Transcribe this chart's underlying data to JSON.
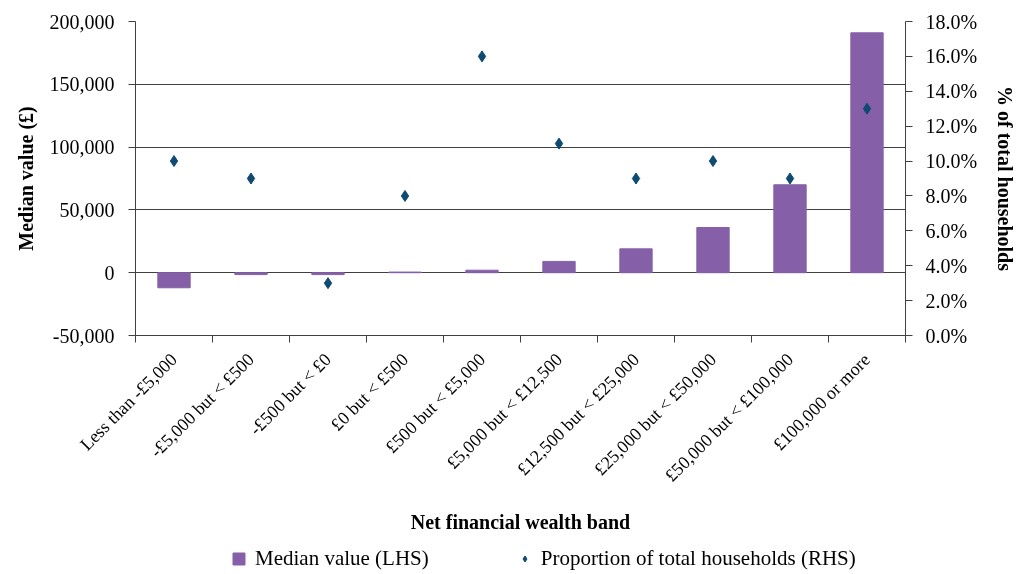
{
  "chart_data": {
    "type": "bar",
    "xlabel": "Net financial wealth band",
    "ylabel": "Median value (£)",
    "y2label": "% of total households",
    "categories": [
      "Less than -£5,000",
      "-£5,000 but < £500",
      "-£500 but < £0",
      "£0 but < £500",
      "£500 but < £5,000",
      "£5,000 but < £12,500",
      "£12,500 but < £25,000",
      "£25,000 but < £50,000",
      "£50,000 but < £100,000",
      "£100,000 or more"
    ],
    "series": [
      {
        "name": "Median value (LHS)",
        "color": "#8560a8",
        "values": [
          -12000,
          -1500,
          -1500,
          500,
          2000,
          9000,
          19000,
          36000,
          70000,
          191000
        ]
      },
      {
        "name": "Proportion of total households (RHS)",
        "type": "scatter",
        "axis": "y2",
        "color": "#0e4a72",
        "values": [
          10,
          9,
          3,
          8,
          16,
          11,
          9,
          10,
          9,
          13
        ]
      }
    ],
    "ylim": [
      -50000,
      200000
    ],
    "yticks": [
      {
        "value": -50000,
        "label": "-50,000"
      },
      0,
      {
        "value": 50000,
        "label": "50,000"
      },
      {
        "value": 100000,
        "label": "100,000"
      },
      {
        "value": 150000,
        "label": "150,000"
      },
      {
        "value": 200000,
        "label": "200,000"
      }
    ],
    "y2lim": [
      0,
      18
    ],
    "y2ticks": [
      {
        "value": 0,
        "label": "0.0%"
      },
      {
        "value": 2,
        "label": "2.0%"
      },
      {
        "value": 4,
        "label": "4.0%"
      },
      {
        "value": 6,
        "label": "6.0%"
      },
      {
        "value": 8,
        "label": "8.0%"
      },
      {
        "value": 10,
        "label": "10.0%"
      },
      {
        "value": 12,
        "label": "12.0%"
      },
      {
        "value": 14,
        "label": "14.0%"
      },
      {
        "value": 16,
        "label": "16.0%"
      },
      {
        "value": 18,
        "label": "18.0%"
      }
    ],
    "grid": "y",
    "legend": "bottom",
    "marker": "diamond"
  }
}
